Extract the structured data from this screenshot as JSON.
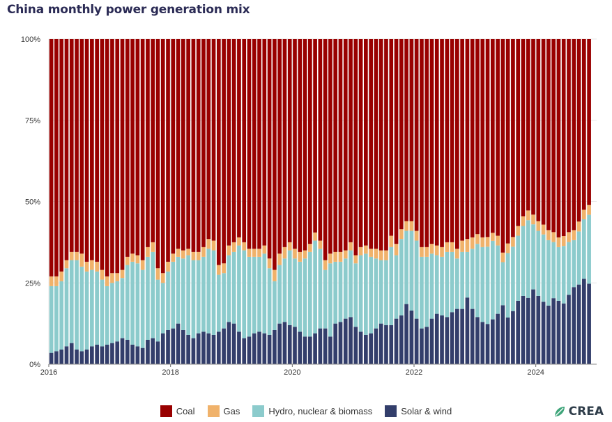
{
  "title": "China monthly power generation mix",
  "logo": "CREA",
  "colors": {
    "coal": "#990000",
    "gas": "#f0b26b",
    "hydro": "#8ccbcc",
    "solar_wind": "#333e6b",
    "grid": "#e8e8e8",
    "title": "#2b2b55"
  },
  "chart_data": {
    "type": "bar",
    "stacked": true,
    "normalized": true,
    "title": "China monthly power generation mix",
    "x_start": "2016-01",
    "x_ticks": [
      "2016",
      "2018",
      "2020",
      "2022",
      "2024"
    ],
    "y_ticks": [
      "0%",
      "25%",
      "50%",
      "75%",
      "100%"
    ],
    "ylim": [
      0,
      100
    ],
    "grid": true,
    "legend_position": "bottom",
    "series": [
      {
        "name": "Solar & wind",
        "color_key": "solar_wind",
        "values": [
          3.5,
          4,
          4.5,
          5.5,
          6.5,
          4.5,
          4,
          4.5,
          5.5,
          6,
          5.5,
          6,
          6.5,
          7,
          8,
          7.5,
          6,
          5.5,
          5,
          7.5,
          8,
          7,
          9.5,
          10.5,
          11,
          12.5,
          10.5,
          9,
          8,
          9.5,
          10,
          9.5,
          9,
          10,
          11,
          13,
          12.5,
          10,
          8,
          8.5,
          9.5,
          10,
          9.5,
          9,
          10.5,
          12.5,
          13,
          12,
          11.5,
          10,
          8.5,
          8.5,
          9.5,
          11,
          11,
          8.5,
          12.5,
          13,
          14,
          14.5,
          11.5,
          10,
          9,
          9.5,
          11,
          12.5,
          12,
          12,
          14,
          15,
          18.5,
          16.5,
          14,
          11,
          11.5,
          14,
          15.5,
          15,
          14.5,
          16,
          17,
          17,
          20.5,
          17,
          14.5,
          13,
          12.5,
          14,
          15.5,
          18.5,
          14.5,
          16.5,
          19.5,
          21,
          20.5,
          23,
          21,
          19,
          17.5,
          20,
          19.5,
          18.5,
          21,
          23,
          24,
          26.5,
          24.5,
          24.5
        ]
      },
      {
        "name": "Hydro, nuclear & biomass",
        "color_key": "hydro",
        "values": [
          20.5,
          20,
          21,
          24,
          25.5,
          27.5,
          26,
          24,
          23.5,
          22.5,
          20.5,
          18,
          18.5,
          18.5,
          18.5,
          23,
          25.5,
          25.5,
          24,
          25.5,
          26.5,
          19,
          15.5,
          18,
          20.5,
          20.5,
          22,
          24.5,
          24,
          22.5,
          23,
          26,
          26,
          17.5,
          17,
          20.5,
          22,
          26.5,
          27,
          24.5,
          23.5,
          23,
          24.5,
          20.5,
          15,
          18,
          19.5,
          23,
          21,
          21.5,
          24,
          26,
          28.5,
          24.5,
          18,
          22.5,
          19,
          18.5,
          18.5,
          20.5,
          19.5,
          23.5,
          25,
          23.5,
          21.5,
          19.5,
          20,
          24,
          19.5,
          23.5,
          22.5,
          24.5,
          24,
          22,
          21.5,
          20,
          18,
          18,
          20,
          18.5,
          15.5,
          17.5,
          14,
          18.5,
          22.5,
          23,
          24,
          24.5,
          21,
          13.5,
          20,
          20,
          20,
          21.5,
          24,
          20,
          20,
          20.5,
          19.5,
          17,
          16.5,
          17.5,
          16,
          14,
          16,
          18.5,
          21
        ]
      },
      {
        "name": "Gas",
        "color_key": "gas",
        "values": [
          3,
          3,
          3,
          2.5,
          2.5,
          2.5,
          4,
          3,
          3,
          3,
          3,
          3,
          3,
          2.5,
          2.5,
          2.5,
          2.5,
          2.5,
          3,
          3,
          3,
          3.5,
          3,
          3,
          2.5,
          2.5,
          2.5,
          2,
          2.5,
          2.5,
          3,
          3,
          3,
          3,
          3,
          3,
          3,
          2.5,
          2.5,
          2.5,
          2.5,
          2.5,
          2.5,
          3,
          3.5,
          3.5,
          3.5,
          2.5,
          3,
          3,
          2.5,
          2.5,
          2.5,
          2.5,
          3,
          3,
          3,
          3,
          2.5,
          2.5,
          2.5,
          2.5,
          2.5,
          2.5,
          3,
          3,
          3,
          3.5,
          3.5,
          3,
          3,
          3,
          3,
          3,
          3,
          3,
          3,
          3,
          3,
          3,
          3,
          3.5,
          4,
          3.5,
          3,
          3,
          3,
          2.5,
          3,
          3,
          3,
          3,
          3,
          3,
          3,
          3,
          3,
          3,
          3,
          3,
          3,
          3,
          3,
          3,
          3,
          3,
          3
        ]
      },
      {
        "name": "Coal",
        "color_key": "coal",
        "values": [
          73,
          73,
          71.5,
          68,
          65.5,
          65.5,
          66,
          68.5,
          68,
          68.5,
          71,
          73,
          72,
          72,
          71,
          67,
          66,
          66.5,
          68,
          64,
          62.5,
          70.5,
          72,
          68.5,
          66,
          64.5,
          65,
          64.5,
          65.5,
          65.5,
          64,
          61.5,
          62,
          69.5,
          69,
          63.5,
          62.5,
          61,
          62.5,
          64.5,
          64.5,
          64.5,
          63.5,
          67.5,
          71,
          66,
          64,
          62.5,
          64.5,
          65.5,
          65,
          63,
          59.5,
          62,
          68,
          66,
          65.5,
          65.5,
          65,
          62.5,
          66.5,
          64,
          63.5,
          64.5,
          64.5,
          65,
          65,
          60.5,
          63,
          58.5,
          56,
          56,
          59,
          64,
          64,
          63,
          63.5,
          64,
          62.5,
          62.5,
          64.5,
          62,
          61.5,
          61,
          60,
          61,
          61.5,
          60.5,
          60.5,
          67,
          63.5,
          61.5,
          57.5,
          54.5,
          53,
          54,
          56,
          56.5,
          57,
          58.5,
          61,
          60,
          58.5,
          57,
          55,
          53,
          50.5
        ]
      }
    ]
  },
  "legend": [
    {
      "label": "Coal",
      "color_key": "coal"
    },
    {
      "label": "Gas",
      "color_key": "gas"
    },
    {
      "label": "Hydro, nuclear & biomass",
      "color_key": "hydro"
    },
    {
      "label": "Solar & wind",
      "color_key": "solar_wind"
    }
  ]
}
